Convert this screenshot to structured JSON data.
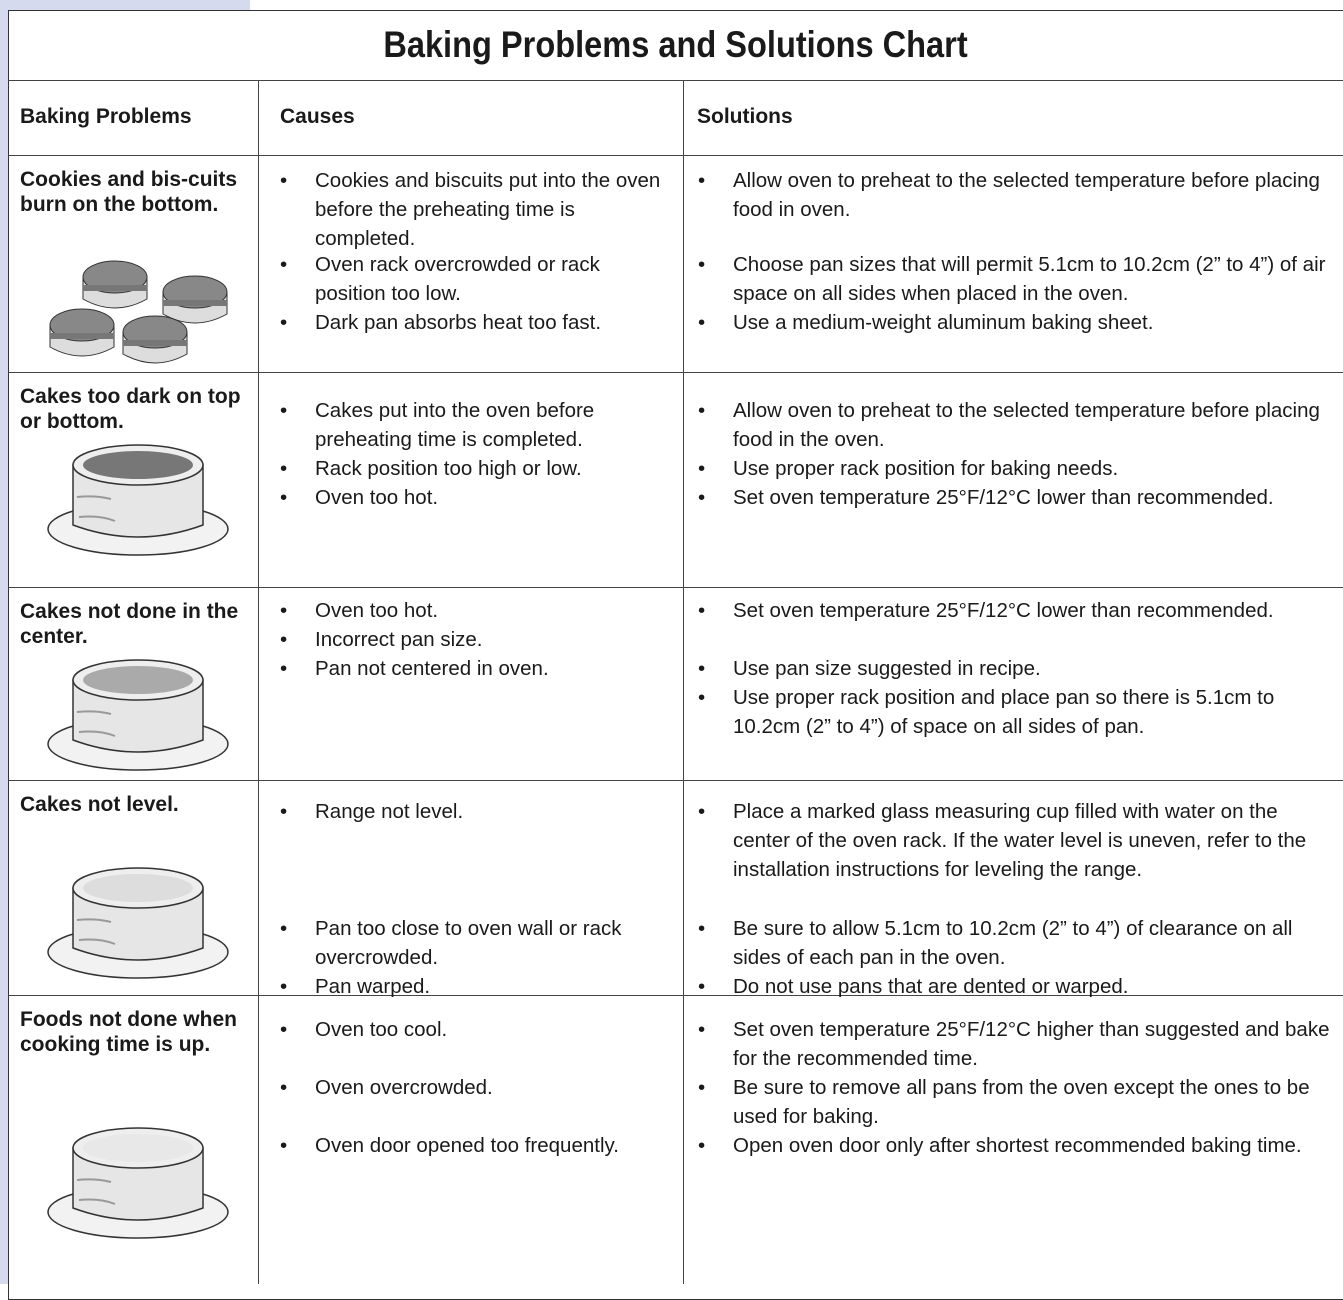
{
  "title": "Baking Problems and Solutions Chart",
  "headers": [
    "Baking Problems",
    "Causes",
    "Solutions"
  ],
  "rows": [
    {
      "problem": "Cookies and bis-cuits burn on the bottom.",
      "causes": [
        "Cookies and biscuits put into the oven before the preheating time is completed.",
        "Oven rack overcrowded or rack position too low.",
        "Dark pan absorbs heat too fast."
      ],
      "solutions": [
        "Allow oven to preheat to the selected temperature before placing food in oven.",
        "Choose pan sizes that will permit 5.1cm to 10.2cm (2” to 4”) of air space on all sides when placed in the oven.",
        "Use a medium-weight aluminum baking sheet."
      ]
    },
    {
      "problem": "Cakes too dark on top or bottom.",
      "causes": [
        "Cakes put into the oven before preheating time is completed.",
        "Rack position too high or low.",
        "Oven too hot."
      ],
      "solutions": [
        "Allow oven to preheat to the selected temperature before placing food in the oven.",
        "Use proper rack position for baking needs.",
        "Set oven temperature 25°F/12°C lower than recommended."
      ]
    },
    {
      "problem": "Cakes not done in the center.",
      "causes": [
        "Oven too hot.",
        "Incorrect pan size.",
        "Pan not centered in oven."
      ],
      "solutions": [
        "Set oven temperature 25°F/12°C lower than recommended.",
        "Use pan size suggested in recipe.",
        "Use proper rack position and place pan so there is 5.1cm to 10.2cm (2” to 4”) of space on all sides of pan."
      ]
    },
    {
      "problem": "Cakes not level.",
      "causes": [
        "Range not level.",
        "Pan too close to oven wall or rack overcrowded.",
        "Pan warped."
      ],
      "solutions": [
        "Place a marked glass measuring cup filled with water on the center of the oven rack.  If the water level is uneven, refer to the installation instructions for leveling the range.",
        "Be sure to allow 5.1cm to 10.2cm (2” to 4”) of clearance on all sides of each pan in the oven.",
        "Do not use pans that are dented or warped."
      ]
    },
    {
      "problem": "Foods not done when cooking time is up.",
      "causes": [
        "Oven too cool.",
        "Oven overcrowded.",
        "Oven door opened too frequently."
      ],
      "solutions": [
        "Set oven temperature 25°F/12°C higher than suggested and bake for the recommended time.",
        "Be sure to remove all pans from the oven except the ones to be used for baking.",
        "Open oven door only after shortest recommended baking time."
      ]
    }
  ]
}
